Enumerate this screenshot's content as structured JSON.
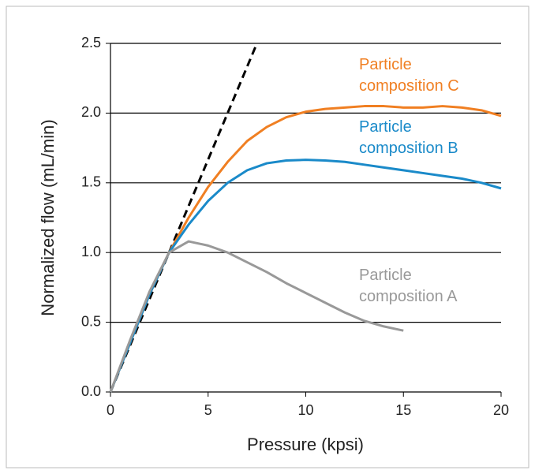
{
  "chart_data": {
    "type": "line",
    "xlabel": "Pressure (kpsi)",
    "ylabel": "Normalized flow (mL/min)",
    "xlim": [
      0,
      20
    ],
    "ylim": [
      0,
      2.5
    ],
    "xticks": [
      0,
      5,
      10,
      15,
      20
    ],
    "yticks": [
      {
        "value": 0,
        "label": "0.0"
      },
      0.5,
      {
        "value": 1,
        "label": "1.0"
      },
      1.5,
      {
        "value": 2,
        "label": "2.0"
      },
      2.5
    ],
    "grid": true,
    "series": [
      {
        "color": "#000000",
        "dashed": true,
        "x": [
          0,
          7.5
        ],
        "values": [
          0,
          2.5
        ]
      },
      {
        "name": "Particle composition C",
        "color": "#f07f22",
        "x": [
          0,
          1,
          2,
          3,
          4,
          5,
          6,
          7,
          8,
          9,
          10,
          11,
          12,
          13,
          14,
          15,
          16,
          17,
          18,
          19,
          20
        ],
        "values": [
          0,
          0.35,
          0.7,
          1.0,
          1.25,
          1.47,
          1.65,
          1.8,
          1.9,
          1.97,
          2.01,
          2.03,
          2.04,
          2.05,
          2.05,
          2.04,
          2.04,
          2.05,
          2.04,
          2.02,
          1.98
        ]
      },
      {
        "name": "Particle composition B",
        "color": "#1a8ac9",
        "x": [
          0,
          1,
          2,
          3,
          4,
          5,
          6,
          7,
          8,
          9,
          10,
          11,
          12,
          13,
          14,
          15,
          16,
          17,
          18,
          19,
          20
        ],
        "values": [
          0,
          0.35,
          0.7,
          1.0,
          1.2,
          1.37,
          1.5,
          1.59,
          1.64,
          1.66,
          1.665,
          1.66,
          1.65,
          1.63,
          1.61,
          1.59,
          1.57,
          1.55,
          1.53,
          1.5,
          1.46
        ]
      },
      {
        "name": "Particle composition A",
        "color": "#999999",
        "x": [
          0,
          1,
          2,
          3,
          4,
          5,
          6,
          7,
          8,
          9,
          10,
          11,
          12,
          13,
          14,
          15
        ],
        "values": [
          0,
          0.37,
          0.72,
          1.0,
          1.08,
          1.05,
          1.0,
          0.93,
          0.86,
          0.78,
          0.71,
          0.64,
          0.57,
          0.51,
          0.47,
          0.44
        ]
      }
    ]
  }
}
